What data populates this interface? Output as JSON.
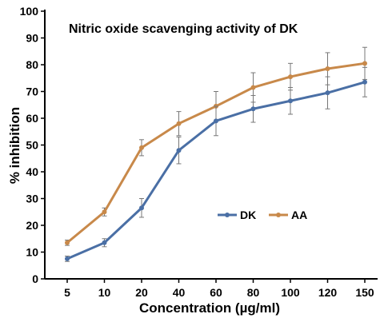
{
  "chart_data": {
    "type": "line",
    "title": "Nitric oxide scavenging activity of DK",
    "xlabel": "Concentration (µg/ml)",
    "ylabel": "% inhibition",
    "categories": [
      "5",
      "10",
      "20",
      "40",
      "60",
      "80",
      "100",
      "120",
      "150"
    ],
    "ylim": [
      0,
      100
    ],
    "yticks": [
      0,
      10,
      20,
      30,
      40,
      50,
      60,
      70,
      80,
      90,
      100
    ],
    "grid": false,
    "legend_position": "center-right",
    "series": [
      {
        "name": "DK",
        "color": "#4a6fa5",
        "values": [
          7.5,
          13.5,
          26.5,
          48,
          59,
          63.5,
          66.5,
          69.5,
          73.5
        ],
        "errors": [
          1,
          1.5,
          3.5,
          5,
          5.5,
          5,
          5,
          6,
          5.5
        ]
      },
      {
        "name": "AA",
        "color": "#c8894a",
        "values": [
          13.5,
          25,
          49,
          58,
          64.5,
          71.5,
          75.5,
          78.5,
          80.5
        ],
        "errors": [
          1,
          1.5,
          3,
          4.5,
          5.5,
          5.5,
          5,
          6,
          6
        ]
      }
    ]
  }
}
